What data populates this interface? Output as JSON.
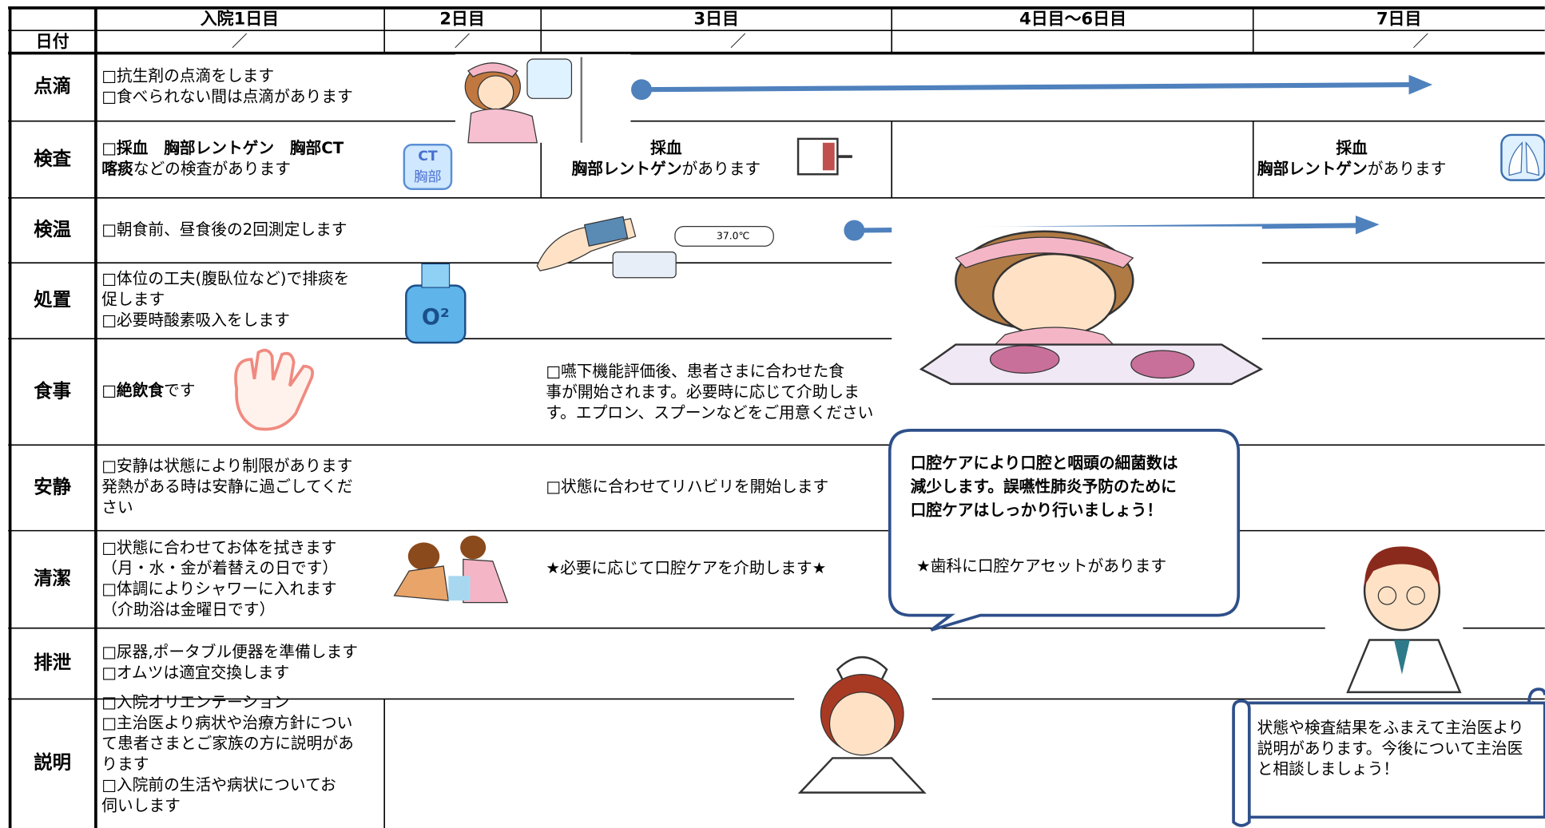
{
  "header": {
    "days": [
      "入院1日目",
      "2日目",
      "3日目",
      "4日目〜6日目",
      "7日目"
    ],
    "date_label": "日付",
    "date_marks": [
      "／",
      "／",
      "／",
      "／"
    ]
  },
  "rows": [
    {
      "label": "点滴",
      "day1": [
        "□抗生剤の点滴をします",
        "□食べられない間は点滴があります"
      ]
    },
    {
      "label": "検査",
      "day1": [
        [
          {
            "bold": "□採血　胸部レントゲン　胸部CT"
          }
        ],
        [
          {
            "bold": "喀痰"
          },
          "などの検査があります"
        ]
      ],
      "day3": [
        [
          {
            "bold": "採血"
          }
        ],
        [
          {
            "bold": "胸部レントゲン"
          },
          "があります"
        ]
      ],
      "day7": [
        [
          {
            "bold": "採血"
          }
        ],
        [
          {
            "bold": "胸部レントゲン"
          },
          "があります"
        ]
      ]
    },
    {
      "label": "検温",
      "day1": [
        "□朝食前、昼食後の2回測定します"
      ]
    },
    {
      "label": "処置",
      "day1": [
        "□体位の工夫(腹臥位など)で排痰を",
        "促します",
        "□必要時酸素吸入をします"
      ]
    },
    {
      "label": "食事",
      "day1": [
        [
          "□",
          {
            "bold": "絶飲食"
          },
          "です"
        ]
      ],
      "day3": [
        "□嚥下機能評価後、患者さまに合わせた食",
        "事が開始されます。必要時に応じて介助しま",
        "す。エプロン、スプーンなどをご用意ください"
      ]
    },
    {
      "label": "安静",
      "day1": [
        "□安静は状態により制限があります",
        "発熱がある時は安静に過ごしてくだ",
        "さい"
      ],
      "day3": [
        "□状態に合わせてリハビリを開始します"
      ]
    },
    {
      "label": "清潔",
      "day1": [
        "□状態に合わせてお体を拭きます",
        "（月・水・金が着替えの日です）",
        "□体調によりシャワーに入れます",
        "（介助浴は金曜日です）"
      ],
      "day3": [
        "★必要に応じて口腔ケアを介助します★"
      ]
    },
    {
      "label": "排泄",
      "day1": [
        "□尿器,ポータブル便器を準備します",
        "□オムツは適宜交換します"
      ]
    },
    {
      "label": "説明",
      "day1": [
        "□入院オリエンテーション",
        "□主治医より病状や治療方針につい",
        "て患者さまとご家族の方に説明があ",
        "ります",
        "□入院前の生活や病状についてお",
        "伺いします"
      ]
    }
  ],
  "callouts": {
    "oral_care": {
      "lines": [
        "口腔ケアにより口腔と咽頭の細菌数は",
        "減少します。誤嚥性肺炎予防のために",
        "口腔ケアはしっかり行いましょう！"
      ],
      "note": "★歯科に口腔ケアセットがあります"
    },
    "doctor_note": {
      "lines": [
        "状態や検査結果をふまえて主治医より",
        "説明があります。今後について主治医",
        "と相談しましょう！"
      ]
    }
  },
  "icons": {
    "ct_badge": [
      "CT",
      "胸部"
    ],
    "oxygen": "O²",
    "thermometer": "37.0℃"
  }
}
